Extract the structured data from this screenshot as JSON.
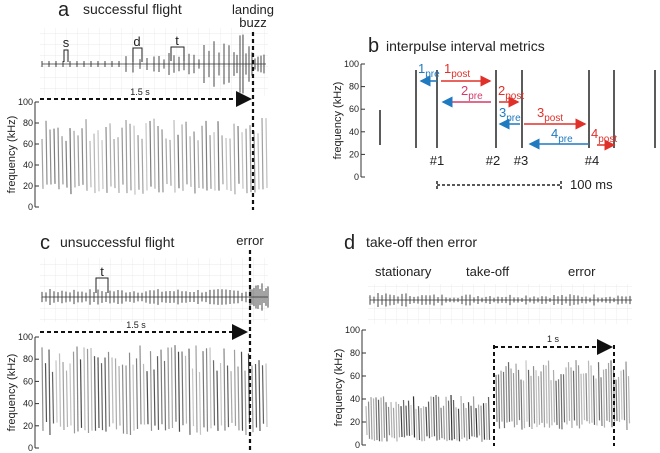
{
  "panels": {
    "a": {
      "letter": "a",
      "title": "successful flight",
      "event_line1": "landing",
      "event_line2": "buzz",
      "duration": "1.5 s",
      "marks": [
        "s",
        "d",
        "t"
      ]
    },
    "b": {
      "letter": "b",
      "title": "interpulse interval metrics",
      "pulses": [
        "#1",
        "#2",
        "#3",
        "#4"
      ],
      "scale": "100 ms",
      "intervals": [
        {
          "num": "1",
          "sub": "pre",
          "kind": "pre"
        },
        {
          "num": "1",
          "sub": "post",
          "kind": "post"
        },
        {
          "num": "2",
          "sub": "pre",
          "kind": "pre2"
        },
        {
          "num": "2",
          "sub": "post",
          "kind": "post"
        },
        {
          "num": "3",
          "sub": "pre",
          "kind": "pre"
        },
        {
          "num": "3",
          "sub": "post",
          "kind": "post"
        },
        {
          "num": "4",
          "sub": "pre",
          "kind": "pre"
        },
        {
          "num": "4",
          "sub": "post",
          "kind": "post"
        }
      ]
    },
    "c": {
      "letter": "c",
      "title": "unsuccessful flight",
      "event": "error",
      "duration": "1.5 s",
      "marks": [
        "t"
      ]
    },
    "d": {
      "letter": "d",
      "title": "take-off then error",
      "phase1": "stationary",
      "phase2": "take-off",
      "phase3": "error",
      "duration": "1 s"
    }
  },
  "axis": {
    "ylabel": "frequency (kHz)",
    "ticks": [
      "0",
      "20",
      "40",
      "60",
      "80",
      "100"
    ]
  },
  "colors": {
    "pre": "#1f7ac0",
    "post": "#e0302a",
    "pre2": "#d63a6a"
  }
}
